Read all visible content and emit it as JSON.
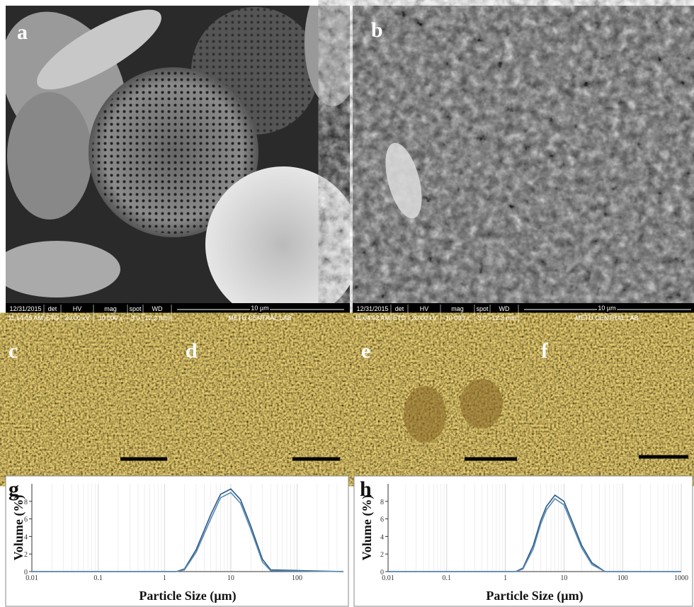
{
  "panels": {
    "labels": [
      "a",
      "b",
      "c",
      "d",
      "e",
      "f",
      "g",
      "h"
    ],
    "sem_info": [
      {
        "cells": [
          [
            "12/31/2015",
            "11:14:05 AM"
          ],
          [
            "det",
            "ETD"
          ],
          [
            "HV",
            "20.00 kV"
          ],
          [
            "mag",
            "10 000 x"
          ],
          [
            "spot",
            "3.0"
          ],
          [
            "WD",
            "12.2 mm"
          ]
        ],
        "scale": "10 µm",
        "lab": "METU CENTRAL LAB"
      },
      {
        "cells": [
          [
            "12/31/2015",
            "11:04:02 AM"
          ],
          [
            "det",
            "ETD"
          ],
          [
            "HV",
            "20.00 kV"
          ],
          [
            "mag",
            "10 000 x"
          ],
          [
            "spot",
            "3.0"
          ],
          [
            "WD",
            "12.3 mm"
          ]
        ],
        "scale": "10 µm",
        "lab": "METU CENTRAL LAB"
      }
    ]
  },
  "chart_data": [
    {
      "type": "line",
      "x_label": "Particle Size (µm)",
      "y_label": "Volume (%)",
      "log_x": true,
      "grid": true,
      "xlim": [
        0.01,
        500
      ],
      "ylim": [
        0,
        10
      ],
      "xticks": [
        0.01,
        0.1,
        1,
        10,
        100
      ],
      "yticks": [
        0,
        2,
        4,
        6,
        8
      ],
      "series": [
        {
          "color": "#2b5a85",
          "x": [
            0.01,
            1,
            1.5,
            2,
            3,
            5,
            7,
            10,
            14,
            20,
            30,
            40,
            500
          ],
          "values": [
            0,
            0,
            0,
            0.3,
            2.5,
            6.5,
            8.8,
            9.4,
            8.2,
            5.2,
            1.4,
            0.2,
            0
          ]
        },
        {
          "color": "#5a8ab5",
          "x": [
            0.01,
            1,
            1.5,
            2,
            3,
            5,
            7,
            10,
            14,
            20,
            30,
            40,
            500
          ],
          "values": [
            0,
            0,
            0,
            0.2,
            2.2,
            6,
            8.4,
            9,
            7.8,
            4.8,
            1.1,
            0.1,
            0
          ]
        }
      ]
    },
    {
      "type": "line",
      "x_label": "Particle Size (µm)",
      "y_label": "Volume (%)",
      "log_x": true,
      "grid": true,
      "xlim": [
        0.01,
        1000
      ],
      "ylim": [
        0,
        10
      ],
      "xticks": [
        0.01,
        0.1,
        1,
        10,
        100,
        1000
      ],
      "yticks": [
        0,
        2,
        4,
        6,
        8
      ],
      "series": [
        {
          "color": "#2b5a85",
          "x": [
            0.01,
            1,
            1.5,
            2,
            3,
            4,
            5,
            7,
            10,
            14,
            20,
            30,
            50,
            1000
          ],
          "values": [
            0,
            0,
            0,
            0.4,
            3,
            5.8,
            7.4,
            8.7,
            8,
            5.6,
            3,
            1,
            0,
            0
          ]
        },
        {
          "color": "#5a8ab5",
          "x": [
            0.01,
            1,
            1.5,
            2,
            3,
            4,
            5,
            7,
            10,
            14,
            20,
            30,
            50,
            1000
          ],
          "values": [
            0,
            0,
            0,
            0.3,
            2.6,
            5.4,
            7,
            8.3,
            7.6,
            5.2,
            2.7,
            0.8,
            0,
            0
          ]
        }
      ]
    }
  ]
}
